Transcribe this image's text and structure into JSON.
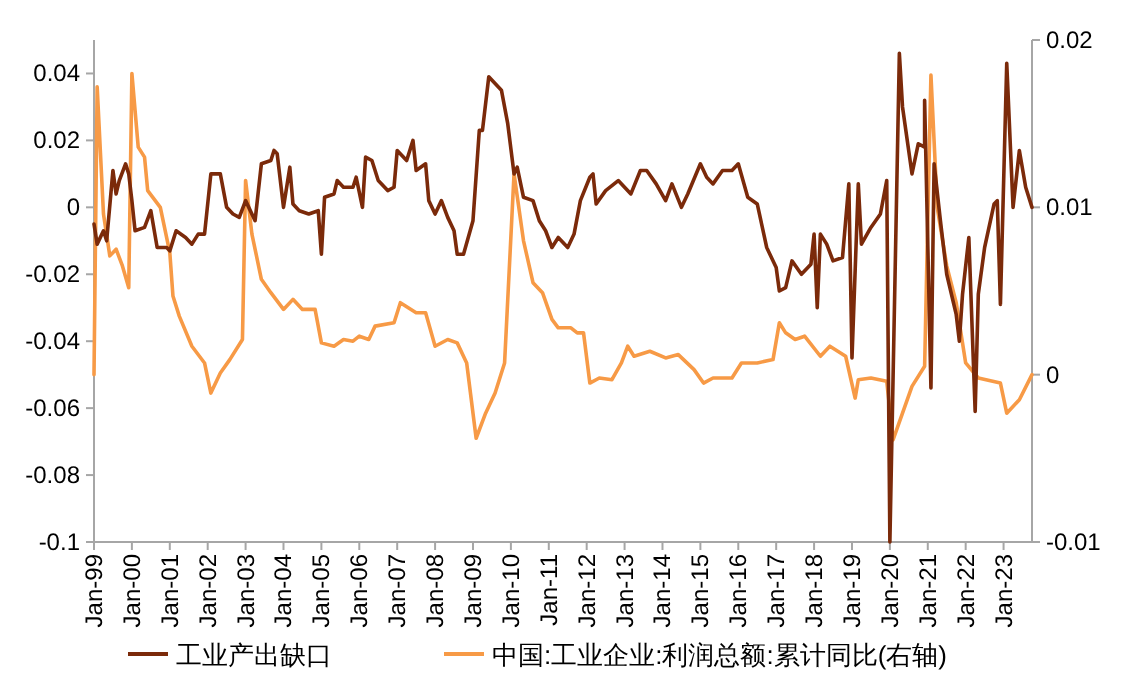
{
  "chart_data": {
    "type": "line",
    "legend": "bottom",
    "xlim": [
      "1999-01",
      "2023-10"
    ],
    "xticks": [
      {
        "value": "1999-01",
        "label": "Jan-99"
      },
      {
        "value": "2000-01",
        "label": "Jan-00"
      },
      {
        "value": "2001-01",
        "label": "Jan-01"
      },
      {
        "value": "2002-01",
        "label": "Jan-02"
      },
      {
        "value": "2003-01",
        "label": "Jan-03"
      },
      {
        "value": "2004-01",
        "label": "Jan-04"
      },
      {
        "value": "2005-01",
        "label": "Jan-05"
      },
      {
        "value": "2006-01",
        "label": "Jan-06"
      },
      {
        "value": "2007-01",
        "label": "Jan-07"
      },
      {
        "value": "2008-01",
        "label": "Jan-08"
      },
      {
        "value": "2009-01",
        "label": "Jan-09"
      },
      {
        "value": "2010-01",
        "label": "Jan-10"
      },
      {
        "value": "2011-01",
        "label": "Jan-11"
      },
      {
        "value": "2012-01",
        "label": "Jan-12"
      },
      {
        "value": "2013-01",
        "label": "Jan-13"
      },
      {
        "value": "2014-01",
        "label": "Jan-14"
      },
      {
        "value": "2015-01",
        "label": "Jan-15"
      },
      {
        "value": "2016-01",
        "label": "Jan-16"
      },
      {
        "value": "2017-01",
        "label": "Jan-17"
      },
      {
        "value": "2018-01",
        "label": "Jan-18"
      },
      {
        "value": "2019-01",
        "label": "Jan-19"
      },
      {
        "value": "2020-01",
        "label": "Jan-20"
      },
      {
        "value": "2021-01",
        "label": "Jan-21"
      },
      {
        "value": "2022-01",
        "label": "Jan-22"
      },
      {
        "value": "2023-01",
        "label": "Jan-23"
      }
    ],
    "ylim": [
      -0.1,
      0.05
    ],
    "yticks": [
      -0.1,
      -0.08,
      -0.06,
      -0.04,
      -0.02,
      0,
      0.02,
      0.04
    ],
    "y2lim": [
      -0.01,
      0.02
    ],
    "y2ticks": [
      -0.01,
      0,
      0.01,
      0.02
    ],
    "series": [
      {
        "name": "工业产出缺口",
        "color": "#7b2a0a",
        "axis": "y",
        "x": [
          "1999-01",
          "1999-02",
          "1999-04",
          "1999-05",
          "1999-07",
          "1999-08",
          "1999-09",
          "1999-11",
          "1999-12",
          "2000-01",
          "2000-02",
          "2000-05",
          "2000-07",
          "2000-09",
          "2000-12",
          "2001-01",
          "2001-03",
          "2001-06",
          "2001-08",
          "2001-10",
          "2001-12",
          "2002-02",
          "2002-05",
          "2002-07",
          "2002-09",
          "2002-11",
          "2003-01",
          "2003-04",
          "2003-06",
          "2003-09",
          "2003-10",
          "2003-11",
          "2004-01",
          "2004-03",
          "2004-04",
          "2004-06",
          "2004-09",
          "2004-12",
          "2005-01",
          "2005-02",
          "2005-05",
          "2005-06",
          "2005-08",
          "2005-11",
          "2005-12",
          "2006-02",
          "2006-03",
          "2006-05",
          "2006-07",
          "2006-10",
          "2006-12",
          "2007-01",
          "2007-04",
          "2007-06",
          "2007-07",
          "2007-10",
          "2007-11",
          "2008-01",
          "2008-03",
          "2008-05",
          "2008-07",
          "2008-08",
          "2008-10",
          "2009-01",
          "2009-03",
          "2009-04",
          "2009-06",
          "2009-08",
          "2009-10",
          "2009-12",
          "2010-02",
          "2010-03",
          "2010-05",
          "2010-08",
          "2010-10",
          "2010-12",
          "2011-02",
          "2011-04",
          "2011-07",
          "2011-09",
          "2011-11",
          "2012-02",
          "2012-03",
          "2012-04",
          "2012-07",
          "2012-11",
          "2013-03",
          "2013-06",
          "2013-08",
          "2013-11",
          "2014-02",
          "2014-04",
          "2014-07",
          "2014-09",
          "2015-01",
          "2015-03",
          "2015-05",
          "2015-08",
          "2015-11",
          "2016-01",
          "2016-04",
          "2016-07",
          "2016-10",
          "2017-01",
          "2017-02",
          "2017-04",
          "2017-06",
          "2017-09",
          "2017-12",
          "2018-01",
          "2018-02",
          "2018-03",
          "2018-05",
          "2018-07",
          "2018-10",
          "2018-12",
          "2019-01",
          "2019-03",
          "2019-04",
          "2019-07",
          "2019-10",
          "2019-12",
          "2020-01",
          "2020-04",
          "2020-05",
          "2020-08",
          "2020-10",
          "2020-12",
          "2020-12",
          "2021-02",
          "2021-03",
          "2021-05",
          "2021-07",
          "2021-10",
          "2021-11",
          "2021-12",
          "2022-02",
          "2022-04",
          "2022-05",
          "2022-07",
          "2022-10",
          "2022-11",
          "2022-12",
          "2023-02",
          "2023-04",
          "2023-06",
          "2023-08",
          "2023-10"
        ],
        "values": [
          -0.005,
          -0.011,
          -0.007,
          -0.01,
          0.011,
          0.004,
          0.008,
          0.013,
          0.01,
          0.002,
          -0.007,
          -0.006,
          -0.001,
          -0.012,
          -0.012,
          -0.013,
          -0.007,
          -0.009,
          -0.011,
          -0.008,
          -0.008,
          0.01,
          0.01,
          0.0,
          -0.002,
          -0.003,
          0.002,
          -0.004,
          0.013,
          0.014,
          0.017,
          0.016,
          0.0,
          0.012,
          0.001,
          -0.001,
          -0.002,
          -0.001,
          -0.014,
          0.003,
          0.004,
          0.008,
          0.006,
          0.006,
          0.009,
          0.0,
          0.015,
          0.014,
          0.008,
          0.005,
          0.006,
          0.017,
          0.014,
          0.02,
          0.011,
          0.013,
          0.002,
          -0.002,
          0.002,
          -0.003,
          -0.007,
          -0.014,
          -0.014,
          -0.004,
          0.023,
          0.023,
          0.039,
          0.037,
          0.035,
          0.025,
          0.01,
          0.012,
          0.003,
          0.002,
          -0.004,
          -0.007,
          -0.012,
          -0.009,
          -0.012,
          -0.008,
          0.002,
          0.009,
          0.01,
          0.001,
          0.005,
          0.008,
          0.004,
          0.011,
          0.011,
          0.007,
          0.002,
          0.007,
          0.0,
          0.004,
          0.013,
          0.009,
          0.007,
          0.011,
          0.011,
          0.013,
          0.003,
          0.001,
          -0.012,
          -0.018,
          -0.025,
          -0.024,
          -0.016,
          -0.02,
          -0.017,
          -0.008,
          -0.03,
          -0.008,
          -0.011,
          -0.016,
          -0.015,
          0.007,
          -0.045,
          0.007,
          -0.011,
          -0.006,
          -0.002,
          0.008,
          -0.1,
          0.046,
          0.03,
          0.01,
          0.019,
          0.018,
          0.032,
          -0.054,
          0.013,
          -0.004,
          -0.02,
          -0.032,
          -0.04,
          -0.026,
          -0.009,
          -0.061,
          -0.026,
          -0.012,
          0.001,
          0.002,
          -0.029,
          0.043,
          0.0,
          0.017,
          0.006,
          0.0
        ]
      },
      {
        "name": "中国:工业企业:利润总额:累计同比(右轴)",
        "color": "#f79a46",
        "axis": "y2",
        "x": [
          "1999-01",
          "1999-02",
          "1999-04",
          "1999-06",
          "1999-08",
          "1999-10",
          "1999-12",
          "2000-01",
          "2000-03",
          "2000-05",
          "2000-06",
          "2000-10",
          "2001-01",
          "2001-02",
          "2001-04",
          "2001-08",
          "2001-12",
          "2002-02",
          "2002-05",
          "2002-08",
          "2002-12",
          "2003-01",
          "2003-03",
          "2003-06",
          "2003-09",
          "2004-01",
          "2004-04",
          "2004-07",
          "2004-11",
          "2005-01",
          "2005-05",
          "2005-08",
          "2005-11",
          "2006-01",
          "2006-04",
          "2006-06",
          "2006-12",
          "2007-02",
          "2007-07",
          "2007-10",
          "2008-01",
          "2008-05",
          "2008-08",
          "2008-11",
          "2009-02",
          "2009-05",
          "2009-08",
          "2009-11",
          "2010-02",
          "2010-05",
          "2010-08",
          "2010-11",
          "2011-02",
          "2011-04",
          "2011-08",
          "2011-10",
          "2011-12",
          "2012-02",
          "2012-05",
          "2012-09",
          "2012-12",
          "2013-02",
          "2013-04",
          "2013-09",
          "2014-02",
          "2014-06",
          "2014-11",
          "2015-02",
          "2015-05",
          "2015-11",
          "2016-02",
          "2016-07",
          "2016-12",
          "2017-02",
          "2017-04",
          "2017-07",
          "2017-10",
          "2018-03",
          "2018-06",
          "2018-11",
          "2019-02",
          "2019-03",
          "2019-07",
          "2019-12",
          "2020-02",
          "2020-05",
          "2020-08",
          "2020-12",
          "2021-02",
          "2021-04",
          "2021-07",
          "2021-10",
          "2022-01",
          "2022-05",
          "2022-12",
          "2023-02",
          "2023-06",
          "2023-10"
        ],
        "values": [
          0.0,
          0.0172,
          0.0096,
          0.0071,
          0.0075,
          0.0065,
          0.0052,
          0.018,
          0.0136,
          0.013,
          0.011,
          0.01,
          0.0073,
          0.0047,
          0.0035,
          0.0017,
          0.0007,
          -0.0011,
          0.0001,
          0.0009,
          0.0021,
          0.0116,
          0.0084,
          0.0057,
          0.0049,
          0.0039,
          0.0045,
          0.0039,
          0.0039,
          0.0019,
          0.0017,
          0.0021,
          0.002,
          0.0023,
          0.0021,
          0.0029,
          0.0031,
          0.0043,
          0.0037,
          0.0037,
          0.0017,
          0.0021,
          0.0019,
          0.0007,
          -0.0038,
          -0.0023,
          -0.0011,
          0.0007,
          0.012,
          0.008,
          0.0055,
          0.0049,
          0.0033,
          0.0028,
          0.0028,
          0.0025,
          0.0025,
          -0.0005,
          -0.0002,
          -0.0003,
          0.0007,
          0.0017,
          0.0011,
          0.0014,
          0.001,
          0.0012,
          0.0003,
          -0.0005,
          -0.0002,
          -0.0002,
          0.0007,
          0.0007,
          0.0009,
          0.0031,
          0.0025,
          0.0021,
          0.0023,
          0.0011,
          0.0017,
          0.0011,
          -0.0014,
          -0.0003,
          -0.0002,
          -0.0004,
          -0.0039,
          -0.0023,
          -0.0007,
          0.0005,
          0.0179,
          0.01,
          0.0065,
          0.0043,
          0.0007,
          -0.0002,
          -0.0005,
          -0.0023,
          -0.0015,
          0.0
        ]
      }
    ]
  }
}
